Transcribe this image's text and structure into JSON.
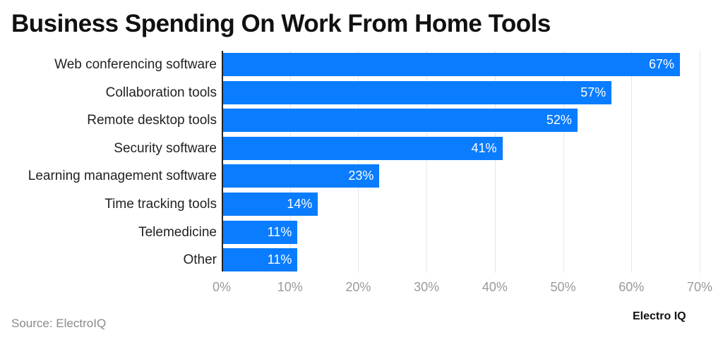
{
  "title": "Business Spending On Work From Home Tools",
  "source": "Source: ElectroIQ",
  "brand": "Electro IQ",
  "colors": {
    "bar": "#0a7cff",
    "bar_label": "#ffffff",
    "tick": "#9a9a9a",
    "grid": "#e6e6e6"
  },
  "chart_data": {
    "type": "bar",
    "orientation": "horizontal",
    "title": "Business Spending On Work From Home Tools",
    "xlabel": "",
    "ylabel": "",
    "categories": [
      "Web conferencing software",
      "Collaboration tools",
      "Remote desktop tools",
      "Security software",
      "Learning management software",
      "Time tracking tools",
      "Telemedicine",
      "Other"
    ],
    "values": [
      67,
      57,
      52,
      41,
      23,
      14,
      11,
      11
    ],
    "value_labels": [
      "67%",
      "57%",
      "52%",
      "41%",
      "23%",
      "14%",
      "11%",
      "11%"
    ],
    "xlim": [
      0,
      70
    ],
    "x_ticks": [
      "0%",
      "10%",
      "20%",
      "30%",
      "40%",
      "50%",
      "60%",
      "70%"
    ],
    "grid": true,
    "legend": null,
    "unit": "%"
  }
}
